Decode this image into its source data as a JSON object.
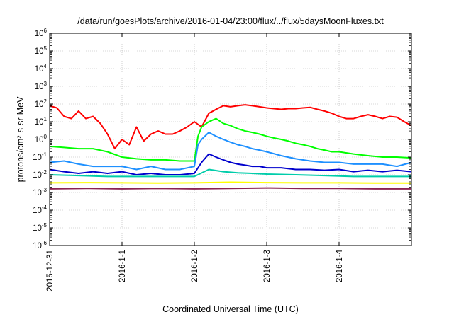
{
  "chart_data": {
    "type": "line",
    "title": "/data/run/goesPlots/archive/2016-01-04/23:00/flux/../flux/5daysMoonFluxes.txt",
    "xlabel": "Coordinated Universal Time (UTC)",
    "ylabel": "protons/cm²-s-sr-MeV",
    "yscale": "log",
    "ylim": [
      1e-06,
      1000000.0
    ],
    "xlim": [
      0,
      5
    ],
    "grid": true,
    "legend": "none",
    "x_ticks": [
      {
        "x": 0,
        "label": "2015-12-31"
      },
      {
        "x": 1,
        "label": "2016-1-1"
      },
      {
        "x": 2,
        "label": "2016-1-2"
      },
      {
        "x": 3,
        "label": "2016-1-3"
      },
      {
        "x": 4,
        "label": "2016-1-4"
      }
    ],
    "y_ticks": [
      {
        "value": 1e-06,
        "base": "10",
        "exp": "-6"
      },
      {
        "value": 1e-05,
        "base": "10",
        "exp": "-5"
      },
      {
        "value": 0.0001,
        "base": "10",
        "exp": "-4"
      },
      {
        "value": 0.001,
        "base": "10",
        "exp": "-3"
      },
      {
        "value": 0.01,
        "base": "10",
        "exp": "-2"
      },
      {
        "value": 0.1,
        "base": "10",
        "exp": "-1"
      },
      {
        "value": 1,
        "base": "10",
        "exp": "0"
      },
      {
        "value": 10.0,
        "base": "10",
        "exp": "1"
      },
      {
        "value": 100.0,
        "base": "10",
        "exp": "2"
      },
      {
        "value": 1000.0,
        "base": "10",
        "exp": "3"
      },
      {
        "value": 10000.0,
        "base": "10",
        "exp": "4"
      },
      {
        "value": 100000.0,
        "base": "10",
        "exp": "5"
      },
      {
        "value": 1000000.0,
        "base": "10",
        "exp": "6"
      }
    ],
    "series": [
      {
        "color": "#ff0000",
        "x": [
          0,
          0.1,
          0.2,
          0.3,
          0.4,
          0.5,
          0.6,
          0.7,
          0.8,
          0.9,
          1.0,
          1.1,
          1.2,
          1.3,
          1.4,
          1.5,
          1.6,
          1.7,
          1.8,
          1.9,
          2.0,
          2.1,
          2.2,
          2.3,
          2.4,
          2.5,
          2.6,
          2.7,
          2.8,
          2.9,
          3.0,
          3.1,
          3.2,
          3.3,
          3.4,
          3.5,
          3.6,
          3.7,
          3.8,
          3.9,
          4.0,
          4.1,
          4.2,
          4.3,
          4.4,
          4.5,
          4.6,
          4.7,
          4.8,
          4.9,
          5.0
        ],
        "y": [
          80,
          60,
          20,
          15,
          40,
          15,
          20,
          8,
          2,
          0.3,
          1,
          0.5,
          5,
          0.8,
          2,
          3,
          2,
          2,
          3,
          5,
          10,
          5,
          30,
          50,
          80,
          70,
          80,
          90,
          80,
          70,
          60,
          55,
          50,
          55,
          55,
          60,
          65,
          50,
          40,
          30,
          20,
          15,
          15,
          20,
          25,
          20,
          15,
          20,
          18,
          10,
          6
        ]
      },
      {
        "color": "#00ff00",
        "x": [
          0,
          0.2,
          0.4,
          0.6,
          0.8,
          1.0,
          1.2,
          1.4,
          1.6,
          1.8,
          2.0,
          2.05,
          2.1,
          2.2,
          2.3,
          2.4,
          2.5,
          2.6,
          2.7,
          2.8,
          2.9,
          3.0,
          3.1,
          3.2,
          3.3,
          3.4,
          3.5,
          3.6,
          3.7,
          3.8,
          3.9,
          4.0,
          4.2,
          4.4,
          4.6,
          4.8,
          5.0
        ],
        "y": [
          0.4,
          0.35,
          0.3,
          0.3,
          0.2,
          0.1,
          0.08,
          0.07,
          0.07,
          0.06,
          0.06,
          1.5,
          5,
          10,
          15,
          8,
          6,
          4,
          3,
          2.5,
          2,
          1.5,
          1.2,
          1.0,
          0.8,
          0.6,
          0.5,
          0.4,
          0.3,
          0.25,
          0.2,
          0.2,
          0.15,
          0.12,
          0.1,
          0.1,
          0.09
        ]
      },
      {
        "color": "#1e90ff",
        "x": [
          0,
          0.2,
          0.4,
          0.6,
          0.8,
          1.0,
          1.2,
          1.4,
          1.6,
          1.8,
          2.0,
          2.05,
          2.1,
          2.2,
          2.3,
          2.4,
          2.5,
          2.6,
          2.7,
          2.8,
          2.9,
          3.0,
          3.2,
          3.4,
          3.6,
          3.8,
          4.0,
          4.2,
          4.4,
          4.6,
          4.8,
          5.0
        ],
        "y": [
          0.05,
          0.06,
          0.04,
          0.03,
          0.03,
          0.03,
          0.02,
          0.03,
          0.02,
          0.02,
          0.03,
          0.5,
          1,
          2.5,
          1.5,
          1,
          0.7,
          0.5,
          0.4,
          0.3,
          0.25,
          0.2,
          0.12,
          0.08,
          0.06,
          0.05,
          0.05,
          0.04,
          0.04,
          0.04,
          0.03,
          0.05
        ]
      },
      {
        "color": "#0000cd",
        "x": [
          0,
          0.2,
          0.4,
          0.6,
          0.8,
          1.0,
          1.2,
          1.4,
          1.6,
          1.8,
          2.0,
          2.1,
          2.2,
          2.3,
          2.4,
          2.5,
          2.6,
          2.7,
          2.8,
          2.9,
          3.0,
          3.2,
          3.4,
          3.6,
          3.8,
          4.0,
          4.2,
          4.4,
          4.6,
          4.8,
          5.0
        ],
        "y": [
          0.02,
          0.015,
          0.012,
          0.015,
          0.012,
          0.015,
          0.01,
          0.012,
          0.01,
          0.01,
          0.012,
          0.05,
          0.15,
          0.1,
          0.07,
          0.05,
          0.04,
          0.035,
          0.03,
          0.03,
          0.025,
          0.025,
          0.02,
          0.02,
          0.018,
          0.02,
          0.015,
          0.018,
          0.015,
          0.018,
          0.015
        ]
      },
      {
        "color": "#00cdaa",
        "x": [
          0,
          0.4,
          0.8,
          1.2,
          1.6,
          2.0,
          2.2,
          2.4,
          2.6,
          2.8,
          3.0,
          3.4,
          3.8,
          4.2,
          4.6,
          5.0
        ],
        "y": [
          0.01,
          0.009,
          0.008,
          0.008,
          0.008,
          0.008,
          0.02,
          0.015,
          0.013,
          0.012,
          0.011,
          0.01,
          0.009,
          0.008,
          0.008,
          0.008
        ]
      },
      {
        "color": "#ffff00",
        "x": [
          0,
          0.5,
          1.0,
          1.5,
          2.0,
          2.5,
          3.0,
          3.5,
          4.0,
          4.5,
          5.0
        ],
        "y": [
          0.0035,
          0.0036,
          0.0035,
          0.0034,
          0.0035,
          0.0038,
          0.0036,
          0.0035,
          0.0035,
          0.0034,
          0.0034
        ]
      },
      {
        "color": "#8b2252",
        "x": [
          0,
          0.5,
          1.0,
          1.5,
          2.0,
          2.5,
          3.0,
          3.5,
          4.0,
          4.5,
          5.0
        ],
        "y": [
          0.0016,
          0.0017,
          0.0016,
          0.0017,
          0.0016,
          0.0017,
          0.0018,
          0.0017,
          0.0017,
          0.0016,
          0.0016
        ]
      }
    ]
  }
}
